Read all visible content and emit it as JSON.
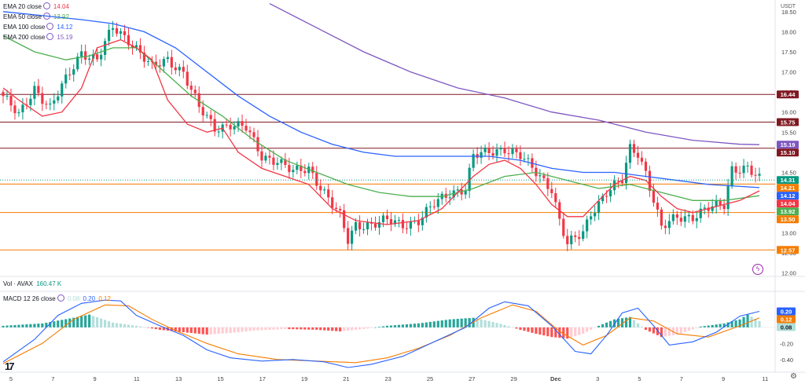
{
  "chart_data": {
    "type": "candlestick",
    "symbol": "AVAX",
    "price_axis_label": "USDT",
    "price_ticks": [
      18.5,
      18.0,
      17.5,
      17.0,
      16.5,
      16.0,
      15.5,
      15.0,
      14.5,
      14.0,
      13.5,
      13.0,
      12.5,
      12.0
    ],
    "price_tick_labels": [
      "18.50",
      "18.00",
      "17.50",
      "17.00",
      "16.50",
      "16.00",
      "15.50",
      "15.00",
      "14.50",
      "14.00",
      "13.50",
      "13.00",
      "12.50",
      "12.00"
    ],
    "price_range": [
      11.95,
      18.75
    ],
    "date_labels": [
      "5",
      "7",
      "9",
      "11",
      "13",
      "15",
      "17",
      "19",
      "21",
      "23",
      "25",
      "27",
      "29",
      "Dec",
      "3",
      "5",
      "7",
      "9",
      "11"
    ],
    "ema_legend": [
      {
        "name": "EMA 20 close",
        "value": "14.04",
        "color": "#f23645"
      },
      {
        "name": "EMA 50 close",
        "value": "13.92",
        "color": "#4caf50"
      },
      {
        "name": "EMA 100 close",
        "value": "14.12",
        "color": "#2962ff"
      },
      {
        "name": "EMA 200 close",
        "value": "15.19",
        "color": "#7e57c2"
      }
    ],
    "horizontal_levels": [
      {
        "value": 16.44,
        "label": "16.44",
        "color": "#801922"
      },
      {
        "value": 15.75,
        "label": "15.75",
        "color": "#801922"
      },
      {
        "value": 15.1,
        "label": "15.10",
        "color": "#801922"
      },
      {
        "value": 14.21,
        "label": "14.21",
        "color": "#f57c00"
      },
      {
        "value": 13.5,
        "label": "13.50",
        "color": "#f57c00"
      },
      {
        "value": 12.57,
        "label": "12.57",
        "color": "#f57c00"
      }
    ],
    "price_badges": [
      {
        "value": 15.19,
        "label": "15.19",
        "color": "#7e57c2"
      },
      {
        "value": 14.31,
        "label": "14.31",
        "color": "#089981"
      },
      {
        "value": 14.12,
        "label": "14.12",
        "color": "#2962ff"
      },
      {
        "value": 14.04,
        "label": "14.04",
        "color": "#f23645"
      },
      {
        "value": 13.92,
        "label": "13.92",
        "color": "#4caf50"
      }
    ],
    "last_price": 14.31,
    "ema_series": {
      "ema20": [
        [
          0,
          16.6
        ],
        [
          4,
          16.3
        ],
        [
          10,
          15.9
        ],
        [
          15,
          16.0
        ],
        [
          20,
          16.6
        ],
        [
          24,
          17.6
        ],
        [
          30,
          17.8
        ],
        [
          34,
          17.6
        ],
        [
          38,
          17.3
        ],
        [
          42,
          16.3
        ],
        [
          47,
          15.7
        ],
        [
          52,
          15.5
        ],
        [
          56,
          15.6
        ],
        [
          60,
          15.0
        ],
        [
          66,
          14.6
        ],
        [
          72,
          14.4
        ],
        [
          78,
          14.2
        ],
        [
          84,
          13.6
        ],
        [
          90,
          13.3
        ],
        [
          98,
          13.2
        ],
        [
          106,
          13.3
        ],
        [
          112,
          13.6
        ],
        [
          116,
          14.0
        ],
        [
          120,
          14.4
        ],
        [
          124,
          14.7
        ],
        [
          128,
          14.8
        ],
        [
          132,
          14.6
        ],
        [
          136,
          14.2
        ],
        [
          140,
          13.7
        ],
        [
          144,
          13.4
        ],
        [
          148,
          13.4
        ],
        [
          152,
          13.8
        ],
        [
          156,
          14.2
        ],
        [
          160,
          14.4
        ],
        [
          164,
          14.3
        ],
        [
          168,
          13.9
        ],
        [
          172,
          13.6
        ],
        [
          176,
          13.5
        ],
        [
          180,
          13.6
        ],
        [
          184,
          13.7
        ],
        [
          188,
          13.8
        ],
        [
          193,
          14.04
        ]
      ],
      "ema50": [
        [
          0,
          17.9
        ],
        [
          8,
          17.5
        ],
        [
          16,
          17.3
        ],
        [
          22,
          17.4
        ],
        [
          28,
          17.6
        ],
        [
          34,
          17.6
        ],
        [
          40,
          17.1
        ],
        [
          48,
          16.4
        ],
        [
          56,
          15.9
        ],
        [
          64,
          15.3
        ],
        [
          72,
          14.8
        ],
        [
          80,
          14.5
        ],
        [
          88,
          14.2
        ],
        [
          96,
          14.0
        ],
        [
          104,
          13.9
        ],
        [
          112,
          13.9
        ],
        [
          120,
          14.1
        ],
        [
          128,
          14.4
        ],
        [
          136,
          14.5
        ],
        [
          144,
          14.3
        ],
        [
          152,
          14.1
        ],
        [
          160,
          14.2
        ],
        [
          168,
          14.0
        ],
        [
          176,
          13.8
        ],
        [
          184,
          13.8
        ],
        [
          193,
          13.92
        ]
      ],
      "ema100": [
        [
          0,
          18.5
        ],
        [
          10,
          18.4
        ],
        [
          20,
          18.3
        ],
        [
          28,
          18.2
        ],
        [
          36,
          18.0
        ],
        [
          44,
          17.6
        ],
        [
          52,
          17.0
        ],
        [
          60,
          16.4
        ],
        [
          68,
          15.9
        ],
        [
          76,
          15.5
        ],
        [
          84,
          15.2
        ],
        [
          92,
          15.0
        ],
        [
          100,
          14.9
        ],
        [
          108,
          14.9
        ],
        [
          116,
          14.9
        ],
        [
          124,
          14.9
        ],
        [
          132,
          14.8
        ],
        [
          140,
          14.6
        ],
        [
          148,
          14.5
        ],
        [
          156,
          14.5
        ],
        [
          164,
          14.4
        ],
        [
          172,
          14.3
        ],
        [
          180,
          14.2
        ],
        [
          193,
          14.12
        ]
      ],
      "ema200": [
        [
          68,
          18.7
        ],
        [
          80,
          18.1
        ],
        [
          92,
          17.5
        ],
        [
          104,
          17.0
        ],
        [
          116,
          16.6
        ],
        [
          128,
          16.35
        ],
        [
          140,
          16.0
        ],
        [
          152,
          15.8
        ],
        [
          164,
          15.5
        ],
        [
          176,
          15.3
        ],
        [
          188,
          15.2
        ],
        [
          193,
          15.19
        ]
      ]
    },
    "candle_path": [
      [
        0,
        16.4
      ],
      [
        4,
        15.9
      ],
      [
        8,
        16.6
      ],
      [
        12,
        16.1
      ],
      [
        16,
        16.8
      ],
      [
        20,
        17.5
      ],
      [
        24,
        17.3
      ],
      [
        28,
        18.1
      ],
      [
        32,
        17.8
      ],
      [
        34,
        17.6
      ],
      [
        38,
        17.1
      ],
      [
        42,
        17.3
      ],
      [
        46,
        17.0
      ],
      [
        50,
        16.1
      ],
      [
        54,
        15.6
      ],
      [
        58,
        15.7
      ],
      [
        62,
        15.6
      ],
      [
        66,
        14.9
      ],
      [
        70,
        14.8
      ],
      [
        74,
        14.5
      ],
      [
        78,
        14.6
      ],
      [
        82,
        14.0
      ],
      [
        86,
        13.4
      ],
      [
        88,
        12.8
      ],
      [
        90,
        13.2
      ],
      [
        94,
        13.2
      ],
      [
        98,
        13.3
      ],
      [
        102,
        13.2
      ],
      [
        106,
        13.3
      ],
      [
        110,
        13.7
      ],
      [
        114,
        14.0
      ],
      [
        118,
        14.1
      ],
      [
        120,
        14.9
      ],
      [
        124,
        15.0
      ],
      [
        128,
        15.1
      ],
      [
        132,
        14.9
      ],
      [
        136,
        14.5
      ],
      [
        140,
        14.1
      ],
      [
        142,
        13.3
      ],
      [
        144,
        12.7
      ],
      [
        148,
        13.0
      ],
      [
        150,
        13.5
      ],
      [
        154,
        14.0
      ],
      [
        158,
        14.3
      ],
      [
        160,
        15.1
      ],
      [
        162,
        15.0
      ],
      [
        164,
        14.5
      ],
      [
        166,
        13.8
      ],
      [
        168,
        13.1
      ],
      [
        172,
        13.4
      ],
      [
        176,
        13.4
      ],
      [
        180,
        13.6
      ],
      [
        184,
        13.7
      ],
      [
        186,
        14.6
      ],
      [
        190,
        14.6
      ],
      [
        193,
        14.31
      ]
    ],
    "candle_count": 194,
    "volume_label": "Vol · AVAX",
    "volume_value": "160.47 K",
    "macd": {
      "label": "MACD 12 26 close",
      "values": {
        "histogram": "0.08",
        "macd": "0.20",
        "signal": "0.12"
      },
      "ticks": [
        0.2,
        0.0,
        -0.2,
        -0.4
      ],
      "tick_labels": [
        "0.20",
        "0.00",
        "-0.20",
        "-0.40"
      ],
      "range": [
        -0.52,
        0.44
      ],
      "macd_line": [
        [
          0,
          -0.43
        ],
        [
          8,
          -0.15
        ],
        [
          14,
          0.15
        ],
        [
          20,
          0.3
        ],
        [
          26,
          0.34
        ],
        [
          30,
          0.33
        ],
        [
          34,
          0.15
        ],
        [
          40,
          0.02
        ],
        [
          46,
          -0.1
        ],
        [
          52,
          -0.28
        ],
        [
          58,
          -0.38
        ],
        [
          66,
          -0.42
        ],
        [
          74,
          -0.4
        ],
        [
          82,
          -0.43
        ],
        [
          88,
          -0.5
        ],
        [
          94,
          -0.46
        ],
        [
          102,
          -0.36
        ],
        [
          110,
          -0.18
        ],
        [
          118,
          0.0
        ],
        [
          124,
          0.24
        ],
        [
          128,
          0.32
        ],
        [
          134,
          0.27
        ],
        [
          140,
          0.02
        ],
        [
          146,
          -0.3
        ],
        [
          150,
          -0.33
        ],
        [
          154,
          -0.1
        ],
        [
          158,
          0.18
        ],
        [
          162,
          0.24
        ],
        [
          166,
          0.02
        ],
        [
          170,
          -0.22
        ],
        [
          176,
          -0.18
        ],
        [
          182,
          -0.06
        ],
        [
          188,
          0.14
        ],
        [
          193,
          0.2
        ]
      ],
      "signal_line": [
        [
          0,
          -0.45
        ],
        [
          10,
          -0.2
        ],
        [
          18,
          0.1
        ],
        [
          26,
          0.28
        ],
        [
          32,
          0.27
        ],
        [
          38,
          0.1
        ],
        [
          44,
          -0.04
        ],
        [
          52,
          -0.2
        ],
        [
          60,
          -0.33
        ],
        [
          70,
          -0.4
        ],
        [
          80,
          -0.42
        ],
        [
          90,
          -0.44
        ],
        [
          98,
          -0.38
        ],
        [
          106,
          -0.26
        ],
        [
          114,
          -0.1
        ],
        [
          122,
          0.12
        ],
        [
          130,
          0.28
        ],
        [
          136,
          0.2
        ],
        [
          142,
          -0.05
        ],
        [
          148,
          -0.22
        ],
        [
          154,
          -0.1
        ],
        [
          160,
          0.12
        ],
        [
          166,
          0.08
        ],
        [
          172,
          -0.08
        ],
        [
          180,
          -0.12
        ],
        [
          188,
          0.02
        ],
        [
          193,
          0.12
        ]
      ],
      "histogram": [
        [
          0,
          0.02
        ],
        [
          10,
          0.05
        ],
        [
          18,
          0.12
        ],
        [
          22,
          0.16
        ],
        [
          28,
          0.06
        ],
        [
          34,
          0.02
        ],
        [
          40,
          -0.03
        ],
        [
          46,
          -0.06
        ],
        [
          52,
          -0.09
        ],
        [
          58,
          -0.07
        ],
        [
          64,
          -0.04
        ],
        [
          72,
          -0.02
        ],
        [
          80,
          -0.03
        ],
        [
          86,
          -0.05
        ],
        [
          92,
          -0.02
        ],
        [
          98,
          0.02
        ],
        [
          106,
          0.05
        ],
        [
          114,
          0.1
        ],
        [
          120,
          0.12
        ],
        [
          124,
          0.08
        ],
        [
          128,
          0.03
        ],
        [
          132,
          -0.03
        ],
        [
          136,
          -0.08
        ],
        [
          140,
          -0.12
        ],
        [
          144,
          -0.14
        ],
        [
          148,
          -0.08
        ],
        [
          152,
          0.02
        ],
        [
          156,
          0.1
        ],
        [
          160,
          0.13
        ],
        [
          164,
          -0.03
        ],
        [
          168,
          -0.12
        ],
        [
          172,
          -0.09
        ],
        [
          178,
          0.01
        ],
        [
          184,
          0.05
        ],
        [
          188,
          0.1
        ],
        [
          190,
          0.16
        ],
        [
          193,
          0.08
        ]
      ]
    },
    "badges_macd": [
      {
        "value": 0.2,
        "label": "0.20",
        "color": "#2962ff"
      },
      {
        "value": 0.12,
        "label": "0.12",
        "color": "#f57c00"
      },
      {
        "value": 0.08,
        "label": "0.08",
        "color": "#b2dfdb"
      }
    ]
  }
}
